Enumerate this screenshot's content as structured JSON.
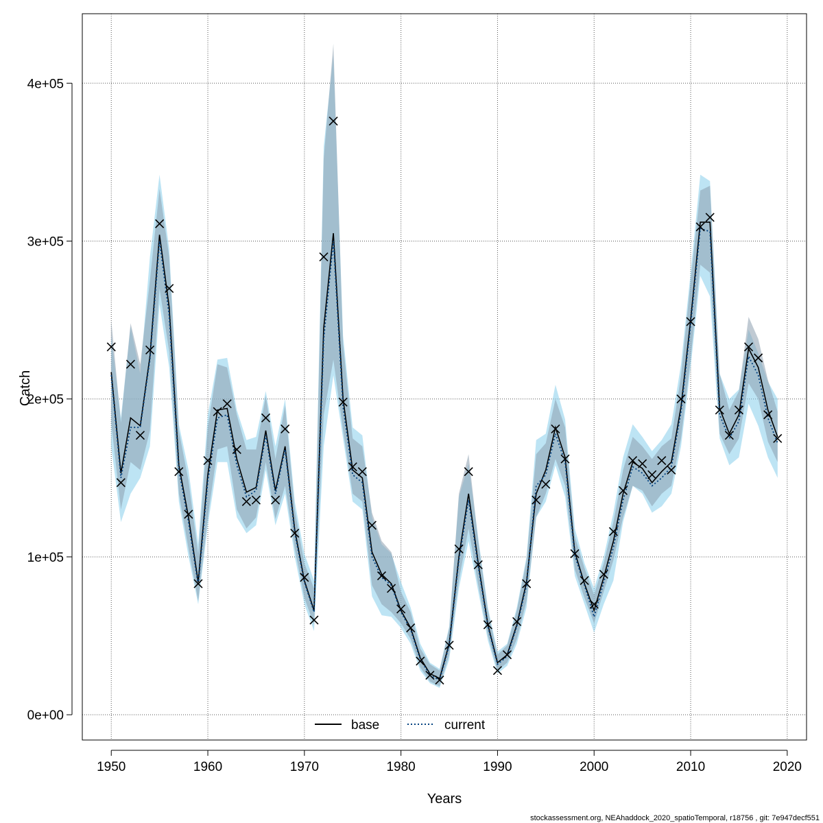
{
  "chart_data": {
    "type": "line",
    "xlabel": "Years",
    "ylabel": "Catch",
    "xlim": [
      1947,
      2022
    ],
    "ylim": [
      -16000,
      444000
    ],
    "x_ticks": [
      1950,
      1960,
      1970,
      1980,
      1990,
      2000,
      2010,
      2020
    ],
    "y_ticks": [
      0,
      100000,
      200000,
      300000,
      400000
    ],
    "y_tick_labels": [
      "0e+00",
      "1e+05",
      "2e+05",
      "3e+05",
      "4e+05"
    ],
    "grid": true,
    "legend_position": "bottom",
    "colors": {
      "base_band": "#8c9fae",
      "current_band": "#87ceeb",
      "base_line": "#000000",
      "current_line": "#00407f",
      "observed_marker": "#000000",
      "grid": "#555555"
    },
    "series": [
      {
        "name": "base",
        "style": "solid",
        "x": [
          1950,
          1951,
          1952,
          1953,
          1954,
          1955,
          1956,
          1957,
          1958,
          1959,
          1960,
          1961,
          1962,
          1963,
          1964,
          1965,
          1966,
          1967,
          1968,
          1969,
          1970,
          1971,
          1972,
          1973,
          1974,
          1975,
          1976,
          1977,
          1978,
          1979,
          1980,
          1981,
          1982,
          1983,
          1984,
          1985,
          1986,
          1987,
          1988,
          1989,
          1990,
          1991,
          1992,
          1993,
          1994,
          1995,
          1996,
          1997,
          1998,
          1999,
          2000,
          2001,
          2002,
          2003,
          2004,
          2005,
          2006,
          2007,
          2008,
          2009,
          2010,
          2011,
          2012,
          2013,
          2014,
          2015,
          2016,
          2017,
          2018,
          2019
        ],
        "values": [
          217000,
          153000,
          188000,
          183000,
          227000,
          304000,
          258000,
          158000,
          125000,
          84000,
          152000,
          193000,
          194000,
          162000,
          141000,
          144000,
          180000,
          142000,
          170000,
          117000,
          85000,
          66000,
          245000,
          305000,
          200000,
          155000,
          150000,
          103000,
          89000,
          83000,
          66000,
          55000,
          36000,
          26000,
          23000,
          45000,
          100000,
          140000,
          96000,
          57000,
          33000,
          38000,
          57000,
          84000,
          140000,
          155000,
          182000,
          163000,
          103000,
          83000,
          66000,
          87000,
          110000,
          140000,
          160000,
          156000,
          147000,
          154000,
          160000,
          195000,
          250000,
          312000,
          312000,
          194000,
          178000,
          190000,
          232000,
          220000,
          193000,
          176000
        ],
        "lower": [
          185000,
          130000,
          160000,
          155000,
          180000,
          270000,
          230000,
          140000,
          105000,
          72000,
          125000,
          168000,
          170000,
          130000,
          118000,
          125000,
          160000,
          124000,
          145000,
          105000,
          74000,
          57000,
          190000,
          225000,
          180000,
          140000,
          135000,
          82000,
          70000,
          65000,
          58000,
          48000,
          30000,
          21000,
          18000,
          38000,
          85000,
          118000,
          82000,
          50000,
          28000,
          33000,
          48000,
          72000,
          125000,
          140000,
          162000,
          145000,
          92000,
          74000,
          58000,
          78000,
          98000,
          125000,
          145000,
          142000,
          132000,
          140000,
          145000,
          175000,
          225000,
          285000,
          280000,
          178000,
          165000,
          175000,
          210000,
          200000,
          173000,
          160000
        ],
        "upper": [
          250000,
          185000,
          248000,
          222000,
          275000,
          333000,
          290000,
          180000,
          148000,
          102000,
          182000,
          222000,
          220000,
          190000,
          168000,
          168000,
          202000,
          162000,
          196000,
          130000,
          96000,
          80000,
          352000,
          425000,
          235000,
          175000,
          170000,
          128000,
          110000,
          103000,
          78000,
          65000,
          42000,
          32000,
          28000,
          55000,
          140000,
          165000,
          110000,
          66000,
          38000,
          44000,
          66000,
          98000,
          165000,
          172000,
          200000,
          182000,
          113000,
          93000,
          76000,
          96000,
          122000,
          155000,
          176000,
          170000,
          162000,
          170000,
          175000,
          215000,
          275000,
          332000,
          335000,
          216000,
          193000,
          205000,
          252000,
          238000,
          212000,
          192000
        ]
      },
      {
        "name": "current",
        "style": "dotted",
        "x": [
          1950,
          1951,
          1952,
          1953,
          1954,
          1955,
          1956,
          1957,
          1958,
          1959,
          1960,
          1961,
          1962,
          1963,
          1964,
          1965,
          1966,
          1967,
          1968,
          1969,
          1970,
          1971,
          1972,
          1973,
          1974,
          1975,
          1976,
          1977,
          1978,
          1979,
          1980,
          1981,
          1982,
          1983,
          1984,
          1985,
          1986,
          1987,
          1988,
          1989,
          1990,
          1991,
          1992,
          1993,
          1994,
          1995,
          1996,
          1997,
          1998,
          1999,
          2000,
          2001,
          2002,
          2003,
          2004,
          2005,
          2006,
          2007,
          2008,
          2009,
          2010,
          2011,
          2012,
          2013,
          2014,
          2015,
          2016,
          2017,
          2018,
          2019
        ],
        "values": [
          215000,
          150000,
          182000,
          182000,
          225000,
          300000,
          253000,
          155000,
          122000,
          82000,
          148000,
          188000,
          190000,
          158000,
          138000,
          142000,
          177000,
          140000,
          168000,
          115000,
          84000,
          65000,
          238000,
          300000,
          195000,
          152000,
          147000,
          100000,
          87000,
          82000,
          65000,
          54000,
          35000,
          25000,
          22000,
          44000,
          98000,
          136000,
          94000,
          56000,
          32000,
          37000,
          56000,
          82000,
          145000,
          152000,
          178000,
          160000,
          101000,
          82000,
          62000,
          84000,
          106000,
          136000,
          157000,
          153000,
          145000,
          150000,
          157000,
          192000,
          247000,
          308000,
          306000,
          190000,
          175000,
          186000,
          227000,
          215000,
          188000,
          172000
        ],
        "lower": [
          170000,
          122000,
          140000,
          150000,
          170000,
          260000,
          220000,
          135000,
          100000,
          70000,
          120000,
          160000,
          160000,
          125000,
          115000,
          120000,
          155000,
          120000,
          140000,
          100000,
          70000,
          53000,
          170000,
          215000,
          175000,
          135000,
          130000,
          75000,
          63000,
          62000,
          55000,
          45000,
          28000,
          20000,
          17000,
          35000,
          80000,
          110000,
          78000,
          47000,
          26000,
          31000,
          45000,
          68000,
          125000,
          135000,
          158000,
          138000,
          88000,
          70000,
          52000,
          70000,
          85000,
          122000,
          145000,
          140000,
          128000,
          132000,
          140000,
          170000,
          220000,
          278000,
          265000,
          175000,
          158000,
          163000,
          197000,
          183000,
          163000,
          150000
        ],
        "upper": [
          240000,
          188000,
          246000,
          216000,
          290000,
          342000,
          295000,
          184000,
          155000,
          108000,
          190000,
          225000,
          226000,
          193000,
          174000,
          176000,
          205000,
          170000,
          200000,
          135000,
          102000,
          85000,
          360000,
          418000,
          240000,
          182000,
          177000,
          125000,
          108000,
          102000,
          84000,
          68000,
          45000,
          33000,
          29000,
          56000,
          138000,
          159000,
          112000,
          68000,
          40000,
          45000,
          68000,
          100000,
          174000,
          178000,
          209000,
          187000,
          118000,
          96000,
          80000,
          100000,
          128000,
          163000,
          184000,
          176000,
          167000,
          174000,
          184000,
          222000,
          280000,
          342000,
          338000,
          216000,
          200000,
          206000,
          244000,
          229000,
          211000,
          200000
        ]
      },
      {
        "name": "observed",
        "style": "x-markers",
        "x": [
          1950,
          1951,
          1952,
          1953,
          1954,
          1955,
          1956,
          1957,
          1958,
          1959,
          1960,
          1961,
          1962,
          1963,
          1964,
          1965,
          1966,
          1967,
          1968,
          1969,
          1970,
          1971,
          1972,
          1973,
          1974,
          1975,
          1976,
          1977,
          1978,
          1979,
          1980,
          1981,
          1982,
          1983,
          1984,
          1985,
          1986,
          1987,
          1988,
          1989,
          1990,
          1991,
          1992,
          1993,
          1994,
          1995,
          1996,
          1997,
          1998,
          1999,
          2000,
          2001,
          2002,
          2003,
          2004,
          2005,
          2006,
          2007,
          2008,
          2009,
          2010,
          2011,
          2012,
          2013,
          2014,
          2015,
          2016,
          2017,
          2018,
          2019
        ],
        "values": [
          233000,
          147000,
          222000,
          177000,
          231000,
          311000,
          270000,
          154000,
          127000,
          83000,
          161000,
          192000,
          197000,
          168000,
          135000,
          136000,
          188000,
          136000,
          181000,
          115000,
          87000,
          60000,
          290000,
          376000,
          198000,
          157000,
          154000,
          120000,
          88000,
          80000,
          67000,
          55000,
          34000,
          25000,
          22000,
          44000,
          105000,
          154000,
          95000,
          57000,
          28000,
          38000,
          59000,
          83000,
          136000,
          146000,
          181000,
          162000,
          102000,
          85000,
          70000,
          89000,
          116000,
          142000,
          161000,
          159000,
          152000,
          161000,
          155000,
          200000,
          249000,
          309000,
          315000,
          193000,
          177000,
          193000,
          233000,
          226000,
          190000,
          175000
        ]
      }
    ],
    "legend": [
      "base",
      "current"
    ],
    "footer": "stockassessment.org, NEAhaddock_2020_spatioTemporal, r18756 , git: 7e947decf551"
  }
}
